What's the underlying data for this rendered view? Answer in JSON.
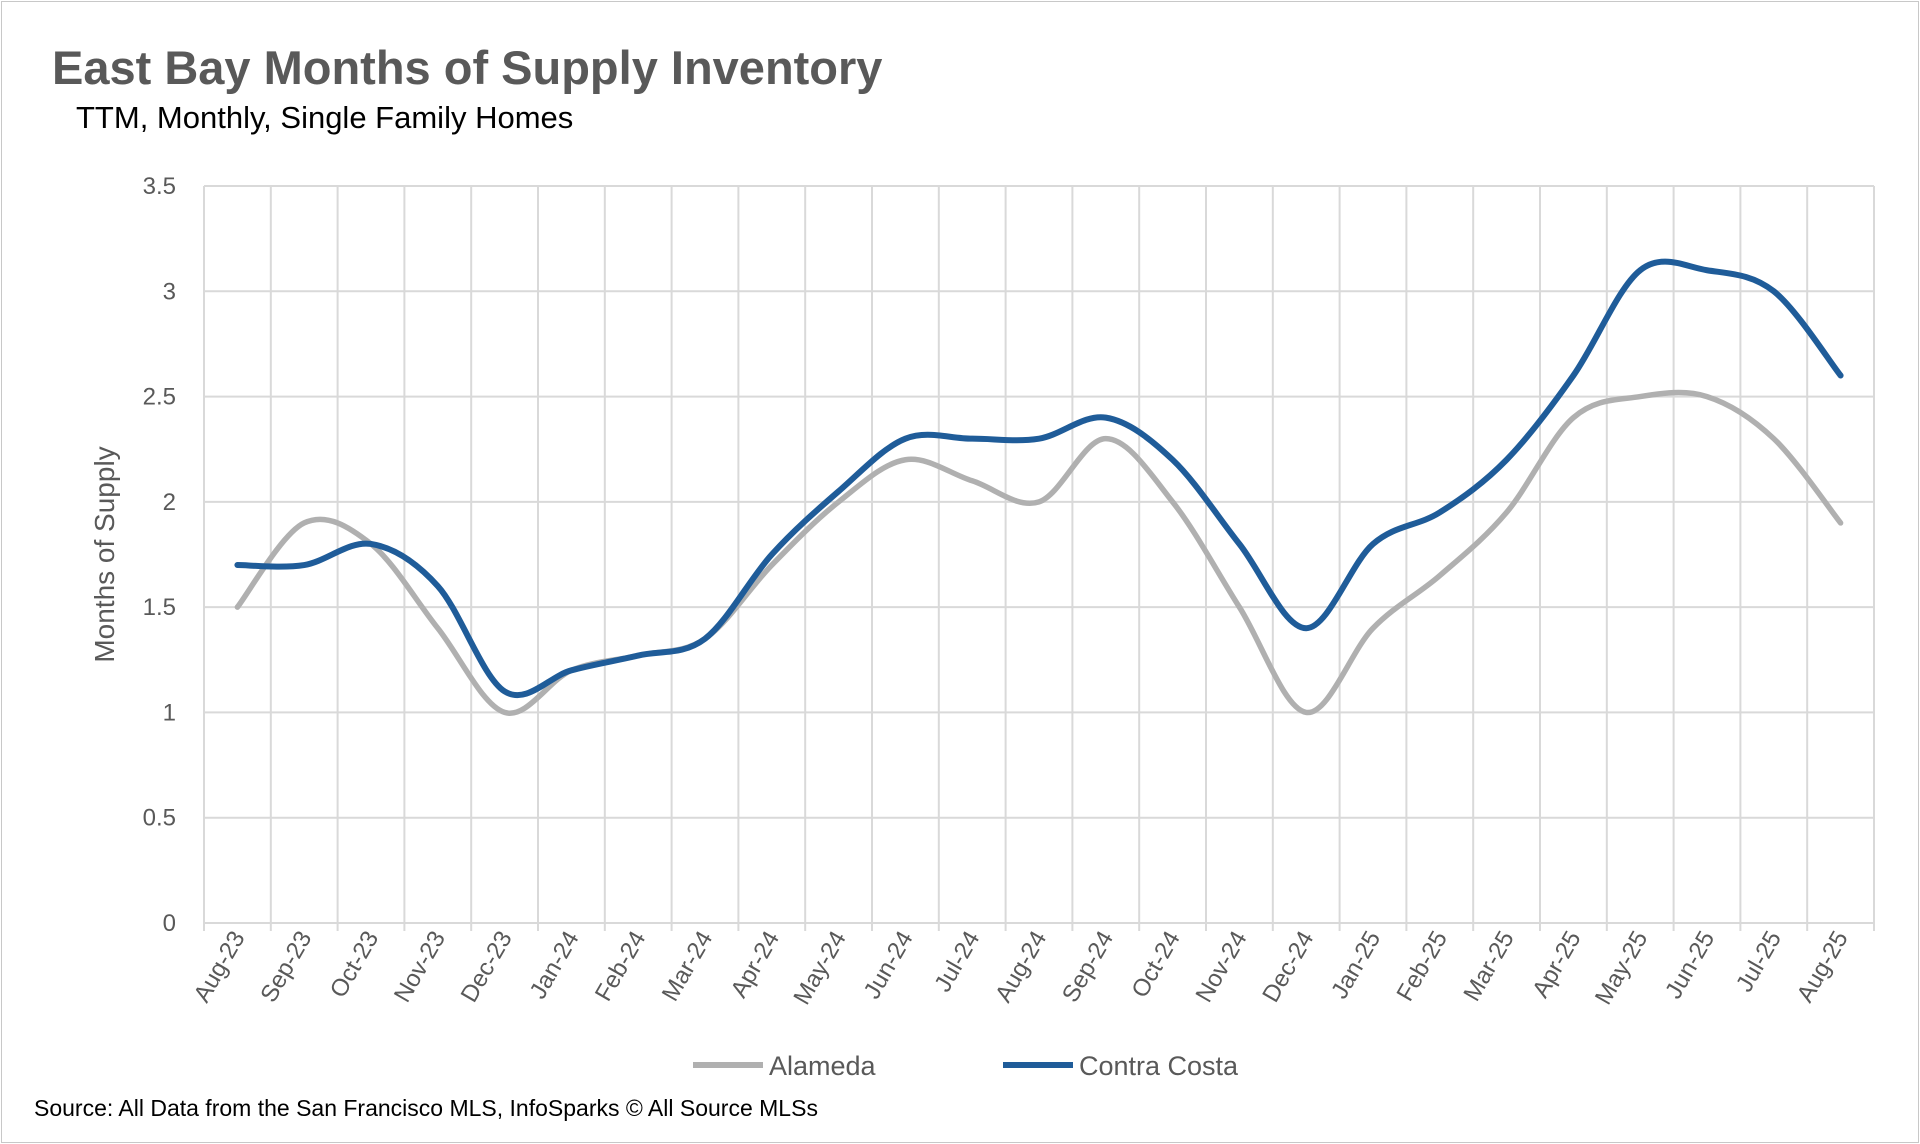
{
  "chart_data": {
    "type": "line",
    "title": "East Bay Months of Supply Inventory",
    "subtitle": "TTM, Monthly, Single Family Homes",
    "xlabel": "",
    "ylabel": "Months of Supply",
    "ylim": [
      0,
      3.5
    ],
    "yticks": [
      "0",
      "0.5",
      "1",
      "1.5",
      "2",
      "2.5",
      "3",
      "3.5"
    ],
    "grid": true,
    "legend_position": "bottom",
    "categories": [
      "Aug-23",
      "Sep-23",
      "Oct-23",
      "Nov-23",
      "Dec-23",
      "Jan-24",
      "Feb-24",
      "Mar-24",
      "Apr-24",
      "May-24",
      "Jun-24",
      "Jul-24",
      "Aug-24",
      "Sep-24",
      "Oct-24",
      "Nov-24",
      "Dec-24",
      "Jan-25",
      "Feb-25",
      "Mar-25",
      "Apr-25",
      "May-25",
      "Jun-25",
      "Jul-25",
      "Aug-25"
    ],
    "series": [
      {
        "name": "Alameda",
        "color": "#b0b0b0",
        "values": [
          1.5,
          1.9,
          1.8,
          1.4,
          1.0,
          1.2,
          1.27,
          1.35,
          1.7,
          2.0,
          2.2,
          2.1,
          2.0,
          2.3,
          2.0,
          1.5,
          1.0,
          1.4,
          1.65,
          1.95,
          2.4,
          2.5,
          2.5,
          2.3,
          1.9
        ]
      },
      {
        "name": "Contra Costa",
        "color": "#1f5c99",
        "values": [
          1.7,
          1.7,
          1.8,
          1.6,
          1.1,
          1.2,
          1.27,
          1.35,
          1.75,
          2.05,
          2.3,
          2.3,
          2.3,
          2.4,
          2.2,
          1.8,
          1.4,
          1.8,
          1.95,
          2.2,
          2.6,
          3.1,
          3.1,
          3.0,
          2.6
        ]
      }
    ],
    "source": "Source: All Data from the San Francisco MLS, InfoSparks © All Source MLSs"
  }
}
